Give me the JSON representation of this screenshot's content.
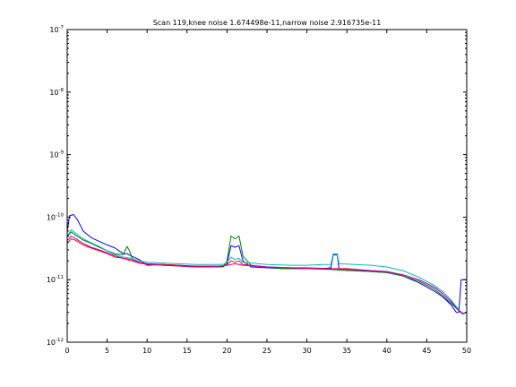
{
  "chart_data": {
    "type": "line",
    "title": "Scan 119,knee noise 1.674498e-11,narrow noise 2.916735e-11",
    "xlabel": "",
    "ylabel": "",
    "xlim": [
      0,
      50
    ],
    "ylim": [
      1e-12,
      1e-07
    ],
    "yscale": "log",
    "grid": false,
    "x_ticks": [
      0,
      5,
      10,
      15,
      20,
      25,
      30,
      35,
      40,
      45,
      50
    ],
    "x_tick_labels": [
      "0",
      "5",
      "10",
      "15",
      "20",
      "25",
      "30",
      "35",
      "40",
      "45",
      "50"
    ],
    "y_ticks": [
      {
        "value": 1e-12,
        "base": "10",
        "exponent": "-12"
      },
      {
        "value": 1e-11,
        "base": "10",
        "exponent": "-11"
      },
      {
        "value": 1e-10,
        "base": "10",
        "exponent": "-10"
      },
      {
        "value": 1e-09,
        "base": "10",
        "exponent": "-9"
      },
      {
        "value": 1e-08,
        "base": "10",
        "exponent": "-8"
      },
      {
        "value": 1e-07,
        "base": "10",
        "exponent": "-7"
      }
    ],
    "series": [
      {
        "color": "#0000ff",
        "points": [
          [
            0,
            6e-11
          ],
          [
            0.3,
            1.05e-10
          ],
          [
            0.8,
            1.1e-10
          ],
          [
            1.3,
            9e-11
          ],
          [
            2,
            6e-11
          ],
          [
            3,
            4.7e-11
          ],
          [
            4,
            4.1e-11
          ],
          [
            5,
            3.6e-11
          ],
          [
            6,
            3.2e-11
          ],
          [
            7,
            2.6e-11
          ],
          [
            7.5,
            2.6e-11
          ],
          [
            8,
            2.4e-11
          ],
          [
            9,
            2.1e-11
          ],
          [
            10,
            1.7e-11
          ],
          [
            12,
            1.75e-11
          ],
          [
            14,
            1.7e-11
          ],
          [
            16,
            1.6e-11
          ],
          [
            18,
            1.65e-11
          ],
          [
            19.5,
            1.6e-11
          ],
          [
            20,
            1.8e-11
          ],
          [
            20.5,
            3.5e-11
          ],
          [
            21,
            3.3e-11
          ],
          [
            21.5,
            3.5e-11
          ],
          [
            22,
            2e-11
          ],
          [
            23,
            1.6e-11
          ],
          [
            25,
            1.55e-11
          ],
          [
            27,
            1.5e-11
          ],
          [
            30,
            1.5e-11
          ],
          [
            32,
            1.5e-11
          ],
          [
            33,
            1.55e-11
          ],
          [
            33.3,
            2.5e-11
          ],
          [
            33.8,
            2.5e-11
          ],
          [
            34,
            1.5e-11
          ],
          [
            36,
            1.45e-11
          ],
          [
            38,
            1.35e-11
          ],
          [
            40,
            1.3e-11
          ],
          [
            42,
            1.15e-11
          ],
          [
            44,
            9e-12
          ],
          [
            46,
            6.5e-12
          ],
          [
            47,
            5.3e-12
          ],
          [
            48,
            4e-12
          ],
          [
            48.7,
            3e-12
          ],
          [
            49,
            3e-12
          ],
          [
            49.3,
            1e-11
          ],
          [
            50,
            1e-11
          ]
        ]
      },
      {
        "color": "#008000",
        "points": [
          [
            0,
            4.8e-11
          ],
          [
            0.5,
            5.8e-11
          ],
          [
            1,
            5.2e-11
          ],
          [
            2,
            4.3e-11
          ],
          [
            3,
            3.8e-11
          ],
          [
            4,
            3.3e-11
          ],
          [
            5,
            2.9e-11
          ],
          [
            6,
            2.6e-11
          ],
          [
            7,
            2.5e-11
          ],
          [
            7.5,
            3.4e-11
          ],
          [
            7.8,
            2.9e-11
          ],
          [
            8.2,
            2.1e-11
          ],
          [
            9,
            1.9e-11
          ],
          [
            10,
            1.8e-11
          ],
          [
            12,
            1.7e-11
          ],
          [
            14,
            1.65e-11
          ],
          [
            16,
            1.6e-11
          ],
          [
            18,
            1.6e-11
          ],
          [
            19.5,
            1.6e-11
          ],
          [
            20,
            2e-11
          ],
          [
            20.5,
            5e-11
          ],
          [
            21,
            4.5e-11
          ],
          [
            21.5,
            5e-11
          ],
          [
            22,
            2.4e-11
          ],
          [
            23,
            1.7e-11
          ],
          [
            25,
            1.6e-11
          ],
          [
            27,
            1.5e-11
          ],
          [
            30,
            1.5e-11
          ],
          [
            33,
            1.45e-11
          ],
          [
            35,
            1.4e-11
          ],
          [
            38,
            1.35e-11
          ],
          [
            40,
            1.3e-11
          ],
          [
            42,
            1.15e-11
          ],
          [
            44,
            9.5e-12
          ],
          [
            46,
            7e-12
          ],
          [
            47,
            5.5e-12
          ],
          [
            48,
            4.2e-12
          ],
          [
            49,
            3.2e-12
          ],
          [
            49.5,
            2.8e-12
          ],
          [
            50,
            3e-12
          ]
        ]
      },
      {
        "color": "#ff0000",
        "points": [
          [
            0,
            3.8e-11
          ],
          [
            0.5,
            4.5e-11
          ],
          [
            1,
            4.3e-11
          ],
          [
            2,
            3.6e-11
          ],
          [
            3,
            3.2e-11
          ],
          [
            4,
            2.9e-11
          ],
          [
            5,
            2.6e-11
          ],
          [
            6,
            2.3e-11
          ],
          [
            7,
            2.2e-11
          ],
          [
            8,
            2.1e-11
          ],
          [
            9,
            1.9e-11
          ],
          [
            10,
            1.8e-11
          ],
          [
            12,
            1.75e-11
          ],
          [
            14,
            1.7e-11
          ],
          [
            16,
            1.65e-11
          ],
          [
            18,
            1.65e-11
          ],
          [
            19.5,
            1.65e-11
          ],
          [
            20,
            1.75e-11
          ],
          [
            20.5,
            2e-11
          ],
          [
            21,
            1.9e-11
          ],
          [
            21.5,
            2e-11
          ],
          [
            22,
            1.75e-11
          ],
          [
            25,
            1.6e-11
          ],
          [
            28,
            1.55e-11
          ],
          [
            30,
            1.55e-11
          ],
          [
            33,
            1.5e-11
          ],
          [
            35,
            1.5e-11
          ],
          [
            38,
            1.4e-11
          ],
          [
            40,
            1.35e-11
          ],
          [
            42,
            1.2e-11
          ],
          [
            44,
            1e-11
          ],
          [
            46,
            7.5e-12
          ],
          [
            47,
            6e-12
          ],
          [
            48,
            4.5e-12
          ],
          [
            49,
            3.3e-12
          ],
          [
            49.5,
            2.9e-12
          ],
          [
            50,
            3e-12
          ]
        ]
      },
      {
        "color": "#00bfbf",
        "points": [
          [
            0,
            5e-11
          ],
          [
            0.5,
            6.3e-11
          ],
          [
            1,
            5.6e-11
          ],
          [
            2,
            4.5e-11
          ],
          [
            3,
            3.9e-11
          ],
          [
            4,
            3.4e-11
          ],
          [
            5,
            2.9e-11
          ],
          [
            6,
            2.5e-11
          ],
          [
            7,
            2.3e-11
          ],
          [
            8,
            2.2e-11
          ],
          [
            9,
            2e-11
          ],
          [
            10,
            1.9e-11
          ],
          [
            12,
            1.85e-11
          ],
          [
            14,
            1.8e-11
          ],
          [
            16,
            1.75e-11
          ],
          [
            18,
            1.75e-11
          ],
          [
            19.5,
            1.75e-11
          ],
          [
            20,
            1.9e-11
          ],
          [
            20.5,
            2.3e-11
          ],
          [
            21,
            2.1e-11
          ],
          [
            21.5,
            2.2e-11
          ],
          [
            22,
            1.9e-11
          ],
          [
            25,
            1.75e-11
          ],
          [
            28,
            1.7e-11
          ],
          [
            30,
            1.7e-11
          ],
          [
            32,
            1.75e-11
          ],
          [
            33,
            1.75e-11
          ],
          [
            33.3,
            2.6e-11
          ],
          [
            33.8,
            2.6e-11
          ],
          [
            34,
            1.8e-11
          ],
          [
            36,
            1.75e-11
          ],
          [
            38,
            1.7e-11
          ],
          [
            40,
            1.6e-11
          ],
          [
            42,
            1.4e-11
          ],
          [
            44,
            1.1e-11
          ],
          [
            46,
            8e-12
          ],
          [
            47,
            6.5e-12
          ],
          [
            48,
            4.8e-12
          ],
          [
            49,
            3.3e-12
          ],
          [
            49.5,
            2.8e-12
          ],
          [
            50,
            3e-12
          ]
        ]
      },
      {
        "color": "#bf00bf",
        "points": [
          [
            0,
            4.2e-11
          ],
          [
            0.5,
            5e-11
          ],
          [
            1,
            4.6e-11
          ],
          [
            2,
            3.8e-11
          ],
          [
            3,
            3.3e-11
          ],
          [
            4,
            3e-11
          ],
          [
            5,
            2.7e-11
          ],
          [
            6,
            2.4e-11
          ],
          [
            7,
            2.2e-11
          ],
          [
            8,
            2e-11
          ],
          [
            9,
            1.85e-11
          ],
          [
            10,
            1.75e-11
          ],
          [
            12,
            1.7e-11
          ],
          [
            14,
            1.65e-11
          ],
          [
            16,
            1.6e-11
          ],
          [
            18,
            1.6e-11
          ],
          [
            20,
            1.7e-11
          ],
          [
            21,
            1.8e-11
          ],
          [
            22,
            1.7e-11
          ],
          [
            25,
            1.6e-11
          ],
          [
            28,
            1.55e-11
          ],
          [
            30,
            1.5e-11
          ],
          [
            33,
            1.5e-11
          ],
          [
            35,
            1.45e-11
          ],
          [
            38,
            1.4e-11
          ],
          [
            40,
            1.35e-11
          ],
          [
            42,
            1.2e-11
          ],
          [
            44,
            1e-11
          ],
          [
            46,
            7.5e-12
          ],
          [
            47,
            6e-12
          ],
          [
            48,
            4.5e-12
          ],
          [
            49,
            3.2e-12
          ],
          [
            49.5,
            2.9e-12
          ],
          [
            50,
            3e-12
          ]
        ]
      }
    ]
  }
}
